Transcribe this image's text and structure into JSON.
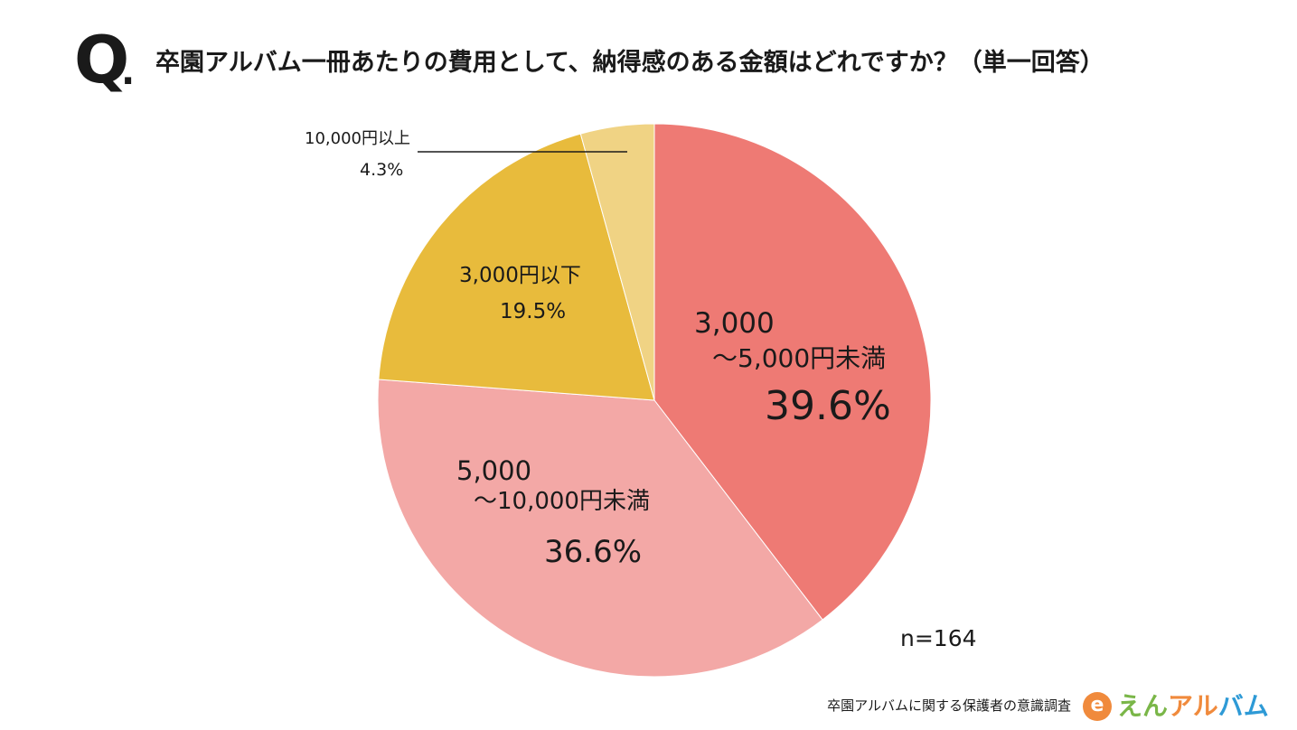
{
  "header": {
    "q_mark": "Q",
    "q_dot": ".",
    "question": "卒園アルバム一冊あたりの費用として、納得感のある金額はどれですか？（単一回答）"
  },
  "chart_data": {
    "type": "pie",
    "start_angle_deg": 0,
    "direction": "clockwise",
    "slices": [
      {
        "label_line1": "3,000",
        "label_line2": "～5,000円未満",
        "value": 39.6,
        "value_label": "39.6%",
        "color": "#ee7a74"
      },
      {
        "label_line1": "5,000",
        "label_line2": "～10,000円未満",
        "value": 36.6,
        "value_label": "36.6%",
        "color": "#f3a8a6"
      },
      {
        "label_line1": "3,000円以下",
        "label_line2": "",
        "value": 19.5,
        "value_label": "19.5%",
        "color": "#e8bb3c"
      },
      {
        "label_line1": "10,000円以上",
        "label_line2": "",
        "value": 4.3,
        "value_label": "4.3%",
        "color": "#f0d384"
      }
    ],
    "sample_size": "n=164"
  },
  "footer": {
    "source": "卒園アルバムに関する保護者の意識調査",
    "brand_icon": "e",
    "brand_part1": "えん",
    "brand_part2": "アル",
    "brand_part3": "バム"
  }
}
